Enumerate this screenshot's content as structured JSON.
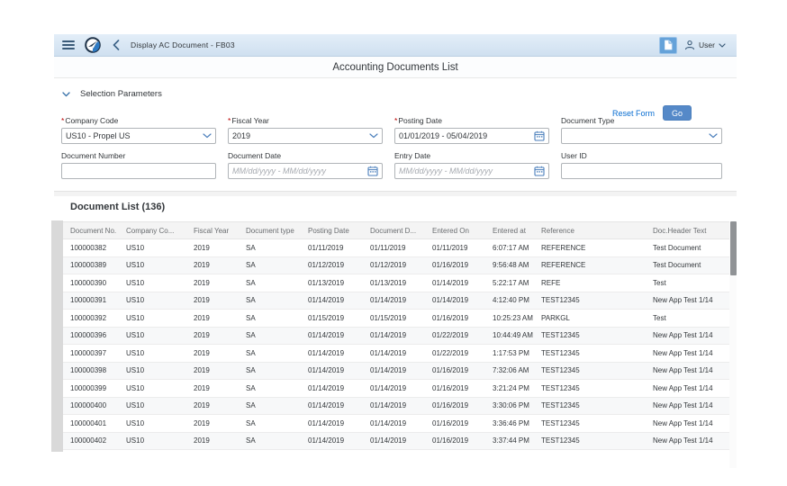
{
  "ui": {
    "required_marker": "*"
  },
  "shell": {
    "title": "Display AC Document - FB03",
    "user_label": "User"
  },
  "page": {
    "title": "Accounting Documents List",
    "section_title": "Selection Parameters",
    "reset_label": "Reset Form",
    "go_label": "Go"
  },
  "form": {
    "fields": [
      {
        "label": "Company Code",
        "required": true,
        "type": "select",
        "value": "US10 - Propel US",
        "placeholder": ""
      },
      {
        "label": "Fiscal Year",
        "required": true,
        "type": "select",
        "value": "2019",
        "placeholder": ""
      },
      {
        "label": "Posting Date",
        "required": true,
        "type": "date",
        "value": "01/01/2019 - 05/04/2019",
        "placeholder": ""
      },
      {
        "label": "Document Type",
        "required": false,
        "type": "select",
        "value": "",
        "placeholder": ""
      },
      {
        "label": "Document Number",
        "required": false,
        "type": "text",
        "value": "",
        "placeholder": ""
      },
      {
        "label": "Document Date",
        "required": false,
        "type": "date",
        "value": "",
        "placeholder": "MM/dd/yyyy - MM/dd/yyyy"
      },
      {
        "label": "Entry Date",
        "required": false,
        "type": "date",
        "value": "",
        "placeholder": "MM/dd/yyyy - MM/dd/yyyy"
      },
      {
        "label": "User ID",
        "required": false,
        "type": "text",
        "value": "",
        "placeholder": ""
      }
    ]
  },
  "table": {
    "title": "Document List (136)",
    "columns": [
      "Document No.",
      "Company Co...",
      "Fiscal Year",
      "Document type",
      "Posting Date",
      "Document D...",
      "Entered On",
      "Entered at",
      "Reference",
      "Doc.Header Text"
    ],
    "rows": [
      [
        "100000382",
        "US10",
        "2019",
        "SA",
        "01/11/2019",
        "01/11/2019",
        "01/11/2019",
        "6:07:17 AM",
        "REFERENCE",
        "Test Document"
      ],
      [
        "100000389",
        "US10",
        "2019",
        "SA",
        "01/12/2019",
        "01/12/2019",
        "01/16/2019",
        "9:56:48 AM",
        "REFERENCE",
        "Test Document"
      ],
      [
        "100000390",
        "US10",
        "2019",
        "SA",
        "01/13/2019",
        "01/13/2019",
        "01/14/2019",
        "5:22:17 AM",
        "REFE",
        "Test"
      ],
      [
        "100000391",
        "US10",
        "2019",
        "SA",
        "01/14/2019",
        "01/14/2019",
        "01/14/2019",
        "4:12:40 PM",
        "TEST12345",
        "New App Test 1/14"
      ],
      [
        "100000392",
        "US10",
        "2019",
        "SA",
        "01/15/2019",
        "01/15/2019",
        "01/16/2019",
        "10:25:23 AM",
        "PARKGL",
        "Test"
      ],
      [
        "100000396",
        "US10",
        "2019",
        "SA",
        "01/14/2019",
        "01/14/2019",
        "01/22/2019",
        "10:44:49 AM",
        "TEST12345",
        "New App Test 1/14"
      ],
      [
        "100000397",
        "US10",
        "2019",
        "SA",
        "01/14/2019",
        "01/14/2019",
        "01/22/2019",
        "1:17:53 PM",
        "TEST12345",
        "New App Test 1/14"
      ],
      [
        "100000398",
        "US10",
        "2019",
        "SA",
        "01/14/2019",
        "01/14/2019",
        "01/16/2019",
        "7:32:06 AM",
        "TEST12345",
        "New App Test 1/14"
      ],
      [
        "100000399",
        "US10",
        "2019",
        "SA",
        "01/14/2019",
        "01/14/2019",
        "01/16/2019",
        "3:21:24 PM",
        "TEST12345",
        "New App Test 1/14"
      ],
      [
        "100000400",
        "US10",
        "2019",
        "SA",
        "01/14/2019",
        "01/14/2019",
        "01/16/2019",
        "3:30:06 PM",
        "TEST12345",
        "New App Test 1/14"
      ],
      [
        "100000401",
        "US10",
        "2019",
        "SA",
        "01/14/2019",
        "01/14/2019",
        "01/16/2019",
        "3:36:46 PM",
        "TEST12345",
        "New App Test 1/14"
      ],
      [
        "100000402",
        "US10",
        "2019",
        "SA",
        "01/14/2019",
        "01/14/2019",
        "01/16/2019",
        "3:37:44 PM",
        "TEST12345",
        "New App Test 1/14"
      ]
    ]
  },
  "colors": {
    "accent_blue": "#0a6ed1",
    "shell_bg": "#d9e6f3",
    "go_button": "#5589c8",
    "required_red": "#bb0000",
    "icon_blue_gray": "#3a5a78"
  },
  "icons": {
    "menu": "hamburger-icon",
    "logo": "app-logo-icon",
    "back": "back-chevron-icon",
    "copy": "copy-document-icon",
    "person": "person-icon",
    "chevron_down": "chevron-down-icon",
    "calendar": "calendar-icon"
  }
}
